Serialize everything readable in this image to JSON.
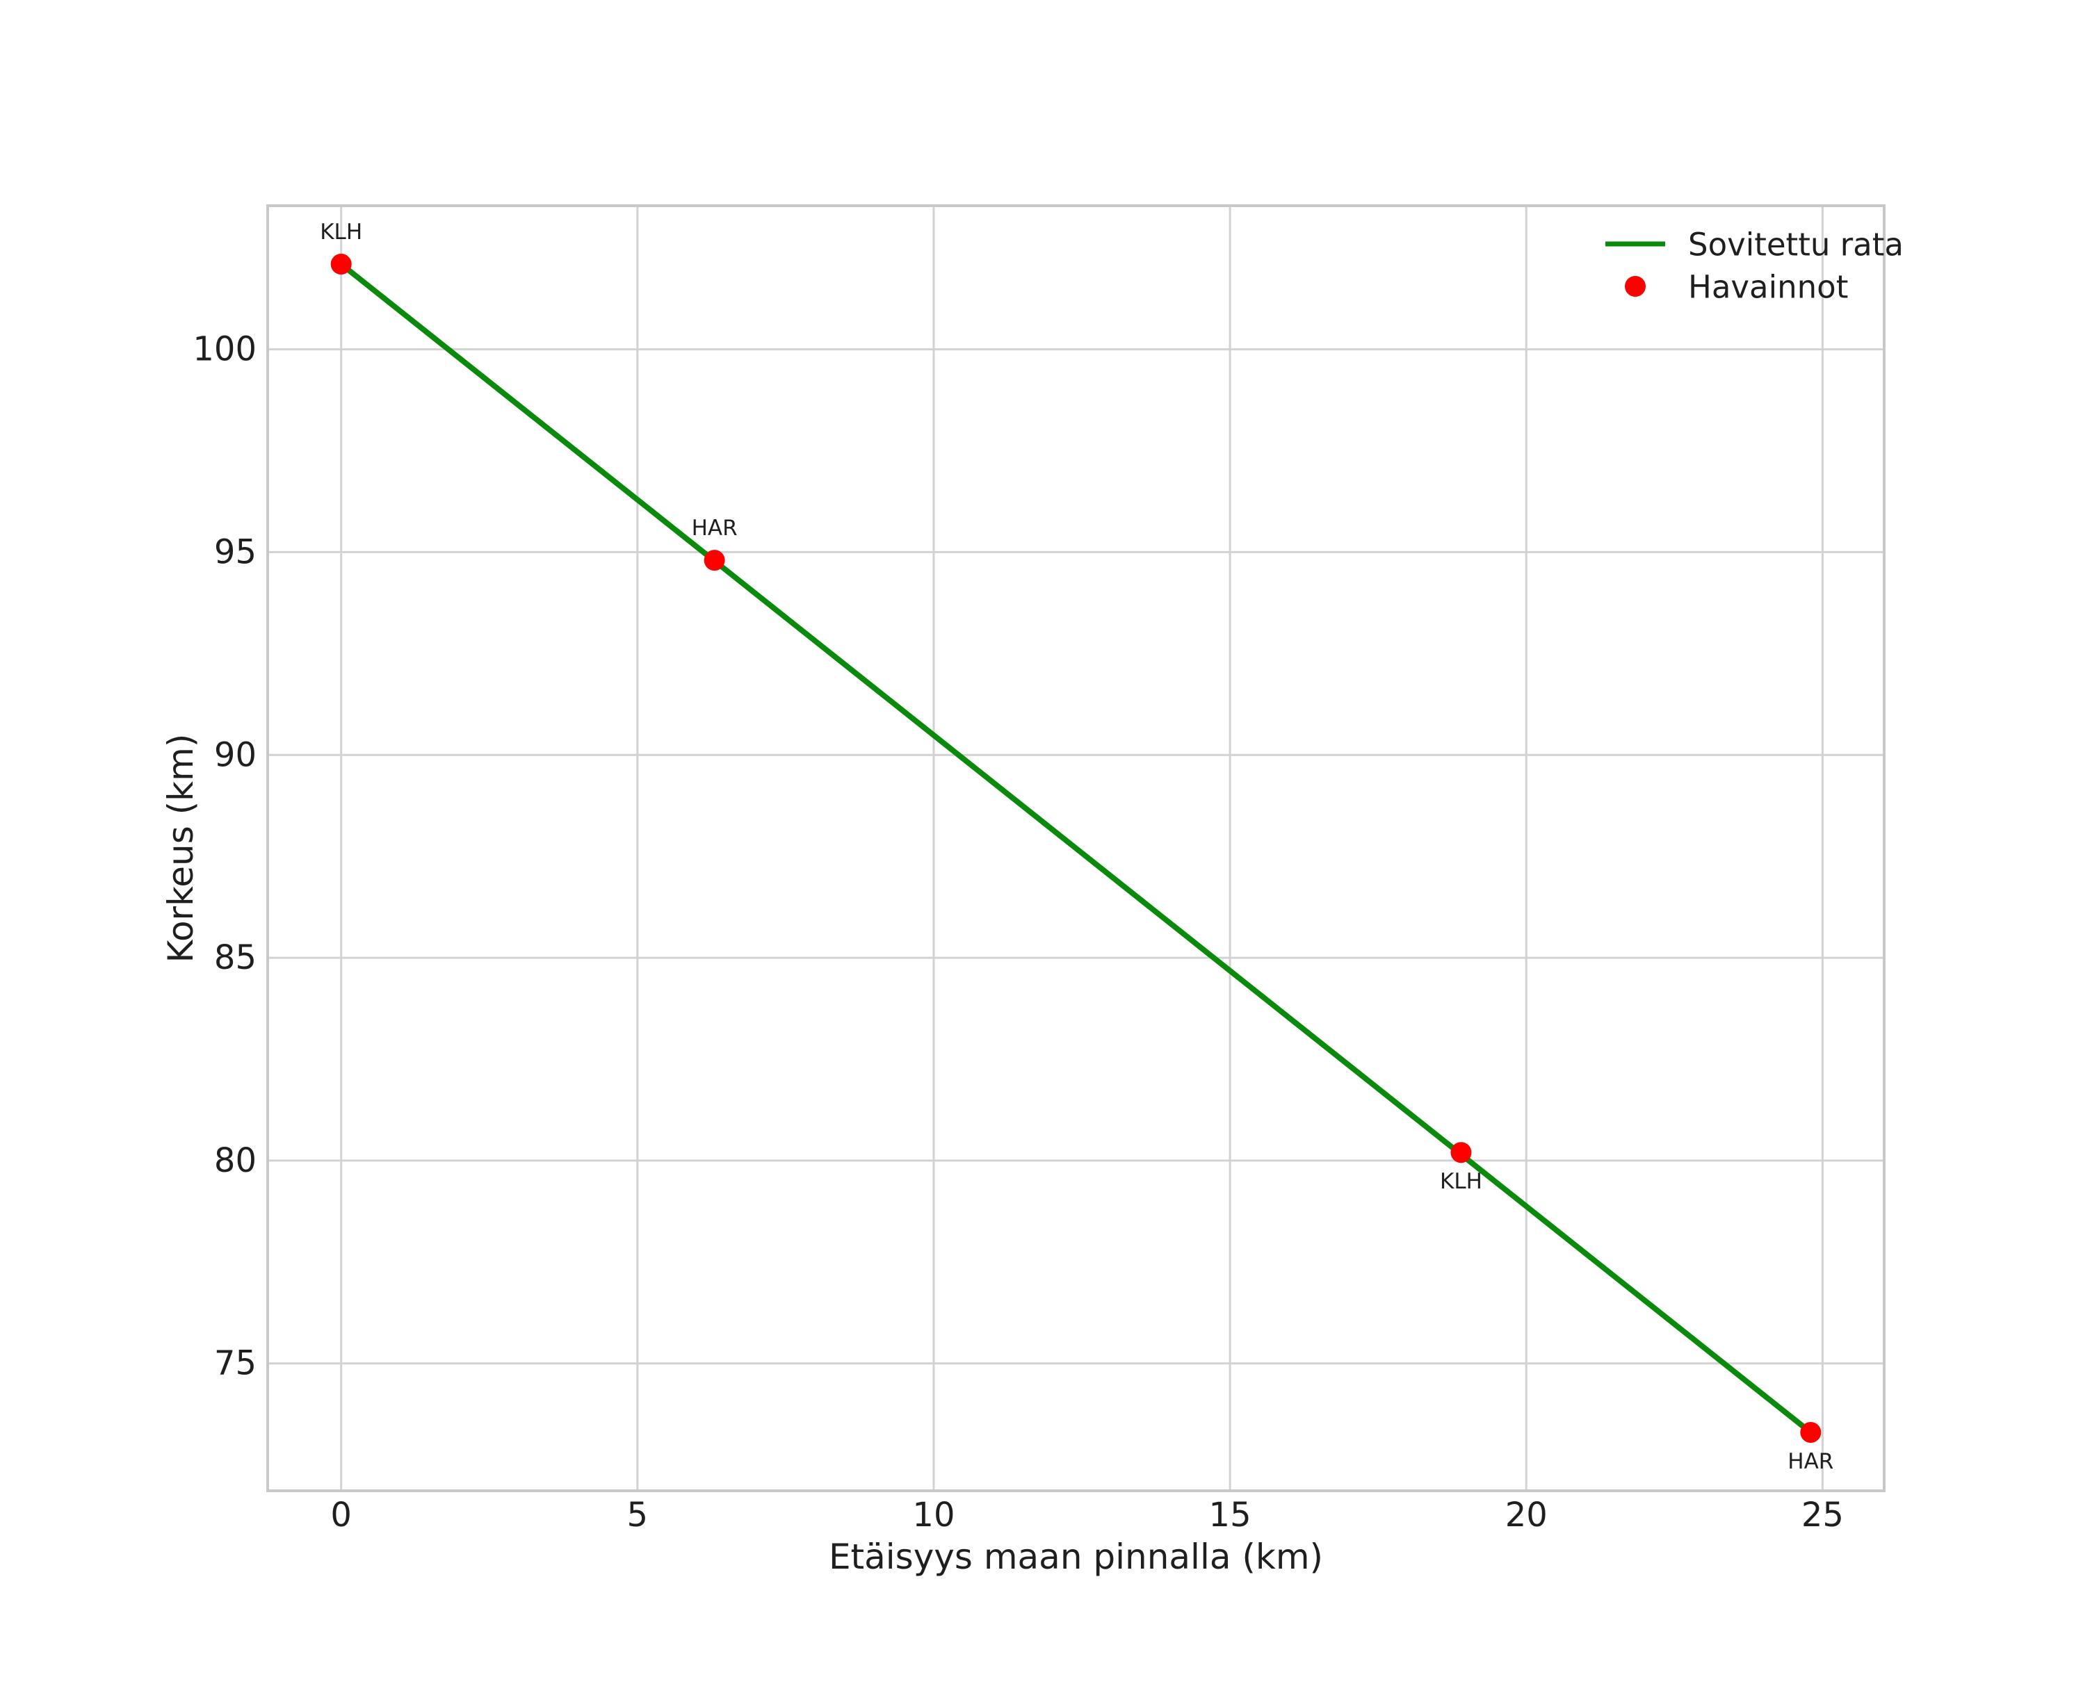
{
  "figure": {
    "background": "#ffffff",
    "text_color": "#1f1f1f",
    "grid_color": "#d2d2d2",
    "spine_color": "#c8c8c8"
  },
  "chart_data": {
    "type": "line",
    "title": "",
    "xlabel": "Etäisyys maan pinnalla (km)",
    "ylabel": "Korkeus (km)",
    "xlim": [
      -1.24,
      26.04
    ],
    "ylim": [
      71.86,
      103.54
    ],
    "xticks": [
      0,
      5,
      10,
      15,
      20,
      25
    ],
    "yticks": [
      75,
      80,
      85,
      90,
      95,
      100
    ],
    "grid": true,
    "legend": {
      "position": "upper-right",
      "entries": [
        {
          "label": "Sovitettu rata",
          "handle": "line",
          "color": "#0a8a0a"
        },
        {
          "label": "Havainnot",
          "handle": "marker",
          "color": "#ff0000"
        }
      ]
    },
    "series": [
      {
        "name": "Sovitettu rata",
        "type": "line",
        "color": "#0a8a0a",
        "x": [
          0,
          24.8
        ],
        "y": [
          102.1,
          73.3
        ]
      },
      {
        "name": "Havainnot",
        "type": "scatter",
        "color": "#ff0000",
        "x": [
          0,
          6.3,
          18.9,
          24.8
        ],
        "y": [
          102.1,
          94.8,
          80.2,
          73.3
        ],
        "point_labels": [
          {
            "text": "KLH",
            "placement": "above"
          },
          {
            "text": "HAR",
            "placement": "above"
          },
          {
            "text": "KLH",
            "placement": "below"
          },
          {
            "text": "HAR",
            "placement": "below"
          }
        ]
      }
    ]
  }
}
